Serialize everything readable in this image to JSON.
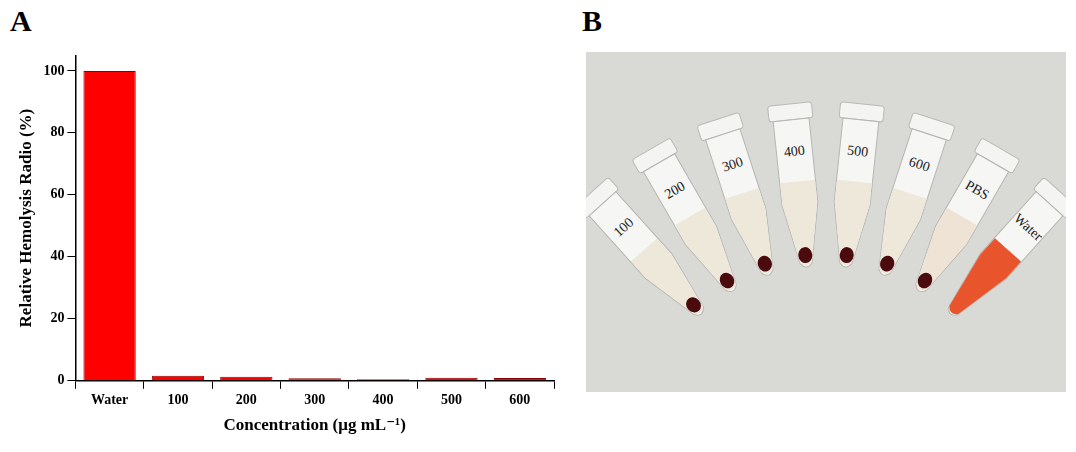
{
  "chart_data": {
    "type": "bar",
    "panel": "A",
    "categories": [
      "Water",
      "100",
      "200",
      "300",
      "400",
      "500",
      "600"
    ],
    "values": [
      100,
      1.6,
      1.3,
      0.8,
      0.5,
      1.0,
      0.9
    ],
    "color": "#ff0000",
    "x_label": "Concentration (μg mL⁻¹)",
    "y_label": "Relative Hemolysis Radio (%)",
    "ylim": [
      0,
      105
    ],
    "yticks": [
      0,
      20,
      40,
      60,
      80,
      100
    ],
    "grid": false
  },
  "photo": {
    "panel": "B",
    "tubes": [
      {
        "label": "100",
        "color": "#eee8da",
        "pellet": true
      },
      {
        "label": "200",
        "color": "#eee8da",
        "pellet": true
      },
      {
        "label": "300",
        "color": "#eee8da",
        "pellet": true
      },
      {
        "label": "400",
        "color": "#eee8da",
        "pellet": true
      },
      {
        "label": "500",
        "color": "#eee8da",
        "pellet": true
      },
      {
        "label": "600",
        "color": "#eee8da",
        "pellet": true
      },
      {
        "label": "PBS",
        "color": "#efe3d6",
        "pellet": true
      },
      {
        "label": "Water",
        "color": "#e8542b",
        "pellet": false
      }
    ]
  }
}
